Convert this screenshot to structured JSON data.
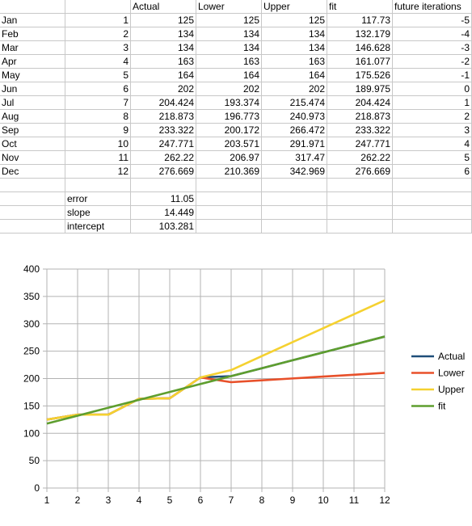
{
  "table": {
    "headers": [
      "",
      "",
      "Actual",
      "Lower",
      "Upper",
      "fit",
      "future iterations"
    ],
    "rows": [
      [
        "Jan",
        "1",
        "125",
        "125",
        "125",
        "117.73",
        "-5"
      ],
      [
        "Feb",
        "2",
        "134",
        "134",
        "134",
        "132.179",
        "-4"
      ],
      [
        "Mar",
        "3",
        "134",
        "134",
        "134",
        "146.628",
        "-3"
      ],
      [
        "Apr",
        "4",
        "163",
        "163",
        "163",
        "161.077",
        "-2"
      ],
      [
        "May",
        "5",
        "164",
        "164",
        "164",
        "175.526",
        "-1"
      ],
      [
        "Jun",
        "6",
        "202",
        "202",
        "202",
        "189.975",
        "0"
      ],
      [
        "Jul",
        "7",
        "204.424",
        "193.374",
        "215.474",
        "204.424",
        "1"
      ],
      [
        "Aug",
        "8",
        "218.873",
        "196.773",
        "240.973",
        "218.873",
        "2"
      ],
      [
        "Sep",
        "9",
        "233.322",
        "200.172",
        "266.472",
        "233.322",
        "3"
      ],
      [
        "Oct",
        "10",
        "247.771",
        "203.571",
        "291.971",
        "247.771",
        "4"
      ],
      [
        "Nov",
        "11",
        "262.22",
        "206.97",
        "317.47",
        "262.22",
        "5"
      ],
      [
        "Dec",
        "12",
        "276.669",
        "210.369",
        "342.969",
        "276.669",
        "6"
      ]
    ],
    "stats": [
      {
        "label": "error",
        "value": "11.05"
      },
      {
        "label": "slope",
        "value": "14.449"
      },
      {
        "label": "intercept",
        "value": "103.281"
      }
    ]
  },
  "chart_data": {
    "type": "line",
    "x": [
      1,
      2,
      3,
      4,
      5,
      6,
      7,
      8,
      9,
      10,
      11,
      12
    ],
    "x_ticks": [
      "1",
      "2",
      "3",
      "4",
      "5",
      "6",
      "7",
      "8",
      "9",
      "10",
      "11",
      "12"
    ],
    "y_ticks": [
      "0",
      "50",
      "100",
      "150",
      "200",
      "250",
      "300",
      "350",
      "400"
    ],
    "ylim": [
      0,
      400
    ],
    "xlim": [
      1,
      12
    ],
    "grid": true,
    "legend_position": "right",
    "series": [
      {
        "name": "Actual",
        "color": "#1f4e79",
        "values": [
          125,
          134,
          134,
          163,
          164,
          202,
          204.424,
          218.873,
          233.322,
          247.771,
          262.22,
          276.669
        ]
      },
      {
        "name": "Lower",
        "color": "#e8502a",
        "values": [
          125,
          134,
          134,
          163,
          164,
          202,
          193.374,
          196.773,
          200.172,
          203.571,
          206.97,
          210.369
        ]
      },
      {
        "name": "Upper",
        "color": "#f5d130",
        "values": [
          125,
          134,
          134,
          163,
          164,
          202,
          215.474,
          240.973,
          266.472,
          291.971,
          317.47,
          342.969
        ]
      },
      {
        "name": "fit",
        "color": "#5e9e2e",
        "values": [
          117.73,
          132.179,
          146.628,
          161.077,
          175.526,
          189.975,
          204.424,
          218.873,
          233.322,
          247.771,
          262.22,
          276.669
        ]
      }
    ]
  }
}
